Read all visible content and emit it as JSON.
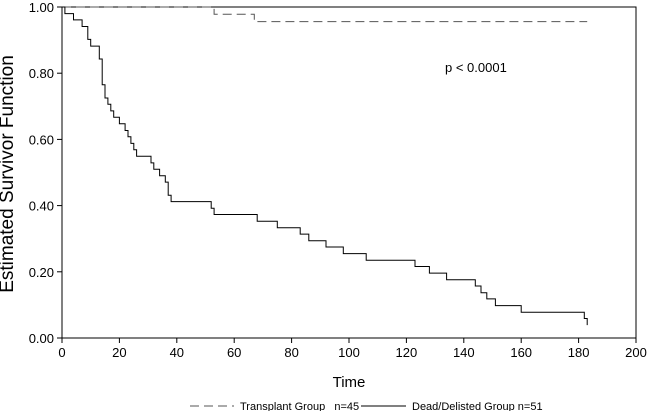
{
  "chart_data": {
    "type": "line",
    "title": "",
    "xlabel": "Time",
    "ylabel": "Estimated Survivor Function",
    "xlim": [
      0,
      200
    ],
    "ylim": [
      0,
      1
    ],
    "x_ticks": [
      "0",
      "20",
      "40",
      "60",
      "80",
      "100",
      "120",
      "140",
      "160",
      "180",
      "200"
    ],
    "y_ticks": [
      "0.00",
      "0.20",
      "0.40",
      "0.60",
      "0.80",
      "1.00"
    ],
    "grid": false,
    "legend_position": "bottom",
    "annotation": "p < 0.0001",
    "series": [
      {
        "name": "Transplant Group   n=45",
        "style": "dashed",
        "points": [
          [
            0,
            1.0
          ],
          [
            53,
            1.0
          ],
          [
            53,
            0.978
          ],
          [
            67,
            0.978
          ],
          [
            67,
            0.956
          ],
          [
            183,
            0.956
          ]
        ]
      },
      {
        "name": "Dead/Delisted Group n=51",
        "style": "solid",
        "points": [
          [
            0,
            1.0
          ],
          [
            1,
            1.0
          ],
          [
            1,
            0.98
          ],
          [
            4,
            0.98
          ],
          [
            4,
            0.961
          ],
          [
            7,
            0.961
          ],
          [
            7,
            0.941
          ],
          [
            9,
            0.941
          ],
          [
            9,
            0.902
          ],
          [
            10,
            0.902
          ],
          [
            10,
            0.882
          ],
          [
            13,
            0.882
          ],
          [
            13,
            0.843
          ],
          [
            14,
            0.843
          ],
          [
            14,
            0.765
          ],
          [
            15,
            0.765
          ],
          [
            15,
            0.725
          ],
          [
            16,
            0.725
          ],
          [
            16,
            0.706
          ],
          [
            17,
            0.706
          ],
          [
            17,
            0.686
          ],
          [
            18,
            0.686
          ],
          [
            18,
            0.667
          ],
          [
            20,
            0.667
          ],
          [
            20,
            0.647
          ],
          [
            22,
            0.647
          ],
          [
            22,
            0.627
          ],
          [
            23,
            0.627
          ],
          [
            23,
            0.608
          ],
          [
            24,
            0.608
          ],
          [
            24,
            0.588
          ],
          [
            25,
            0.588
          ],
          [
            25,
            0.569
          ],
          [
            26,
            0.569
          ],
          [
            26,
            0.549
          ],
          [
            31,
            0.549
          ],
          [
            31,
            0.529
          ],
          [
            32,
            0.529
          ],
          [
            32,
            0.51
          ],
          [
            34,
            0.51
          ],
          [
            34,
            0.49
          ],
          [
            36,
            0.49
          ],
          [
            36,
            0.471
          ],
          [
            37,
            0.471
          ],
          [
            37,
            0.431
          ],
          [
            38,
            0.431
          ],
          [
            38,
            0.412
          ],
          [
            52,
            0.412
          ],
          [
            52,
            0.392
          ],
          [
            53,
            0.392
          ],
          [
            53,
            0.373
          ],
          [
            68,
            0.373
          ],
          [
            68,
            0.353
          ],
          [
            75,
            0.353
          ],
          [
            75,
            0.333
          ],
          [
            83,
            0.333
          ],
          [
            83,
            0.314
          ],
          [
            86,
            0.314
          ],
          [
            86,
            0.294
          ],
          [
            92,
            0.294
          ],
          [
            92,
            0.275
          ],
          [
            98,
            0.275
          ],
          [
            98,
            0.255
          ],
          [
            106,
            0.255
          ],
          [
            106,
            0.235
          ],
          [
            123,
            0.235
          ],
          [
            123,
            0.216
          ],
          [
            128,
            0.216
          ],
          [
            128,
            0.196
          ],
          [
            134,
            0.196
          ],
          [
            134,
            0.176
          ],
          [
            144,
            0.176
          ],
          [
            144,
            0.157
          ],
          [
            146,
            0.157
          ],
          [
            146,
            0.137
          ],
          [
            148,
            0.137
          ],
          [
            148,
            0.118
          ],
          [
            151,
            0.118
          ],
          [
            151,
            0.098
          ],
          [
            160,
            0.098
          ],
          [
            160,
            0.078
          ],
          [
            182,
            0.078
          ],
          [
            182,
            0.059
          ],
          [
            183,
            0.059
          ],
          [
            183,
            0.039
          ]
        ]
      }
    ]
  }
}
